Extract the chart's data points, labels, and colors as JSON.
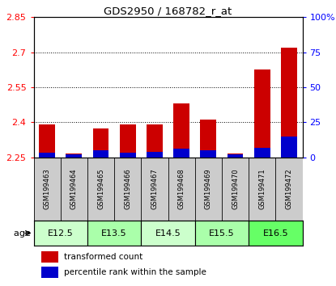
{
  "title": "GDS2950 / 168782_r_at",
  "samples": [
    "GSM199463",
    "GSM199464",
    "GSM199465",
    "GSM199466",
    "GSM199467",
    "GSM199468",
    "GSM199469",
    "GSM199470",
    "GSM199471",
    "GSM199472"
  ],
  "transformed_count": [
    2.39,
    2.265,
    2.375,
    2.39,
    2.39,
    2.48,
    2.41,
    2.265,
    2.625,
    2.72
  ],
  "percentile_rank": [
    3,
    2,
    5,
    3,
    4,
    6,
    5,
    2,
    7,
    15
  ],
  "age_groups": [
    {
      "label": "E12.5",
      "start": 0,
      "end": 2,
      "color": "#ccffcc"
    },
    {
      "label": "E13.5",
      "start": 2,
      "end": 4,
      "color": "#aaffaa"
    },
    {
      "label": "E14.5",
      "start": 4,
      "end": 6,
      "color": "#ccffcc"
    },
    {
      "label": "E15.5",
      "start": 6,
      "end": 8,
      "color": "#aaffaa"
    },
    {
      "label": "E16.5",
      "start": 8,
      "end": 10,
      "color": "#66ff66"
    }
  ],
  "ylim_left": [
    2.25,
    2.85
  ],
  "ylim_right": [
    0,
    100
  ],
  "yticks_left": [
    2.25,
    2.4,
    2.55,
    2.7,
    2.85
  ],
  "yticks_right": [
    0,
    25,
    50,
    75,
    100
  ],
  "ytick_labels_right": [
    "0",
    "25",
    "50",
    "75",
    "100%"
  ],
  "bar_color_red": "#cc0000",
  "bar_color_blue": "#0000cc",
  "base_value": 2.25,
  "grid_color": "black",
  "legend_red": "transformed count",
  "legend_blue": "percentile rank within the sample",
  "sample_panel_color": "#cccccc",
  "bar_width": 0.6
}
